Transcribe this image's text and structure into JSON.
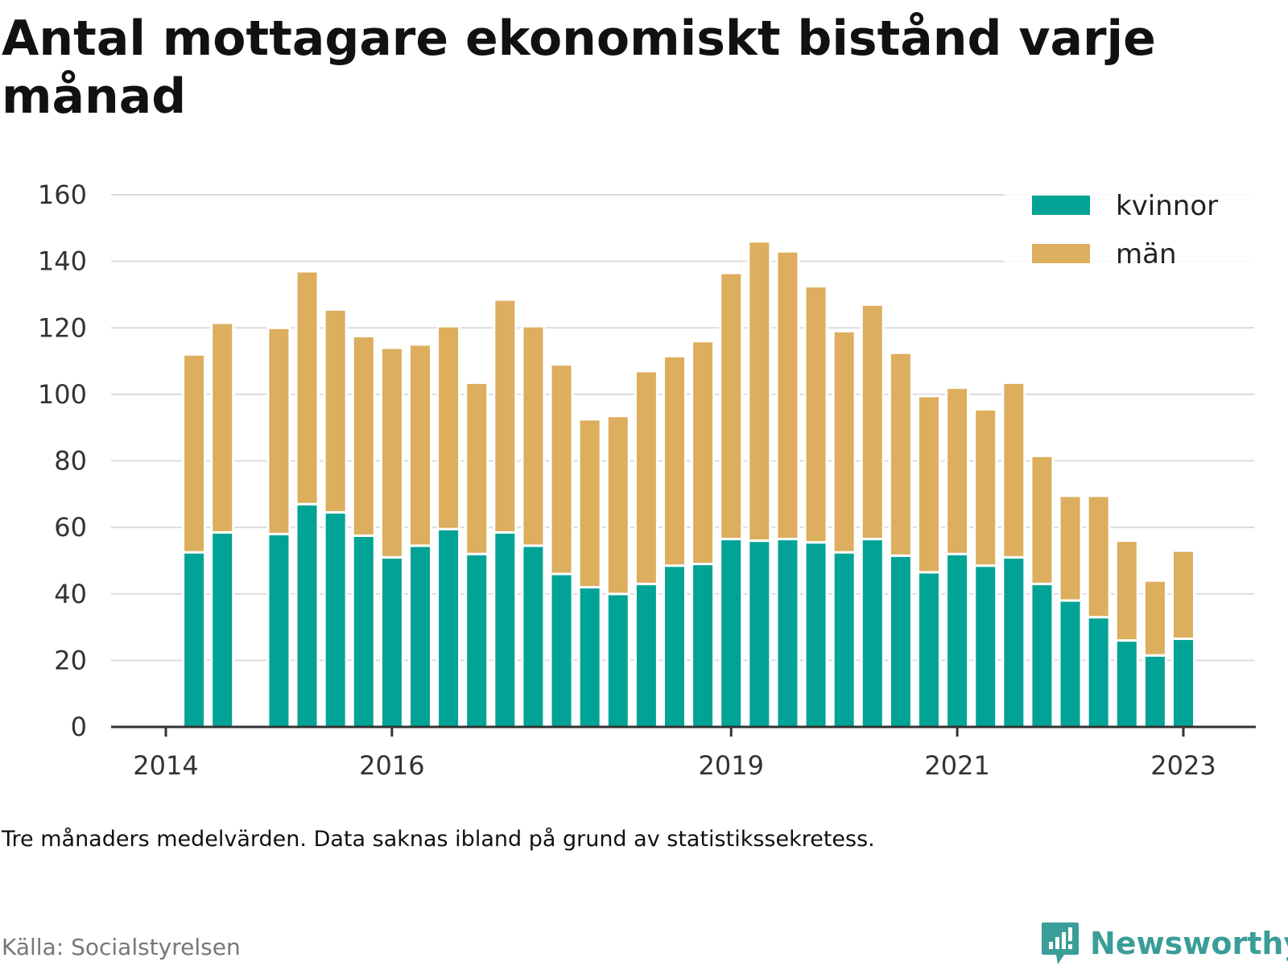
{
  "title": "Antal mottagare ekonomiskt bistånd varje månad",
  "note": "Tre månaders medelvärden. Data saknas ibland på grund av statistikssekretess.",
  "source": "Källa: Socialstyrelsen",
  "brand": "Newsworthy",
  "chart_data": {
    "type": "bar",
    "stacked": true,
    "title": "Antal mottagare ekonomiskt bistånd varje månad",
    "xlabel": "",
    "ylabel": "",
    "ylim": [
      0,
      160
    ],
    "yticks": [
      0,
      20,
      40,
      60,
      80,
      100,
      120,
      140,
      160
    ],
    "x_tick_labels": [
      {
        "label": "2014",
        "x": 2014.0
      },
      {
        "label": "2016",
        "x": 2016.0
      },
      {
        "label": "2019",
        "x": 2019.0
      },
      {
        "label": "2021",
        "x": 2021.0
      },
      {
        "label": "2023",
        "x": 2023.0
      }
    ],
    "x_range": [
      2013.52,
      2023.67
    ],
    "grid": true,
    "legend_position": "top-right",
    "x": [
      2014.25,
      2014.5,
      2015.0,
      2015.25,
      2015.5,
      2015.75,
      2016.0,
      2016.25,
      2016.5,
      2016.75,
      2017.0,
      2017.25,
      2017.5,
      2017.75,
      2018.0,
      2018.25,
      2018.5,
      2018.75,
      2019.0,
      2019.25,
      2019.5,
      2019.75,
      2020.0,
      2020.25,
      2020.5,
      2020.75,
      2021.0,
      2021.25,
      2021.5,
      2021.75,
      2022.0,
      2022.25,
      2022.5,
      2022.75,
      2023.0
    ],
    "series": [
      {
        "name": "kvinnor",
        "color": "#00a396",
        "values": [
          52.5,
          58.5,
          58,
          67,
          64.5,
          57.5,
          51,
          54.5,
          59.5,
          52,
          58.5,
          54.5,
          46,
          42,
          40,
          43,
          48.5,
          49,
          56.5,
          56,
          56.5,
          55.5,
          52.5,
          56.5,
          51.5,
          46.5,
          52,
          48.5,
          51,
          43,
          38,
          33,
          26,
          21.5,
          26.5
        ]
      },
      {
        "name": "män",
        "color": "#dcae5e",
        "values": [
          59.5,
          63,
          62,
          70,
          61,
          60,
          63,
          60.5,
          61,
          51.5,
          70,
          66,
          63,
          50.5,
          53.5,
          64,
          63,
          67,
          80,
          90,
          86.5,
          77,
          66.5,
          70.5,
          61,
          53,
          50,
          47,
          52.5,
          38.5,
          31.5,
          36.5,
          30,
          22.5,
          26.5
        ]
      }
    ]
  }
}
